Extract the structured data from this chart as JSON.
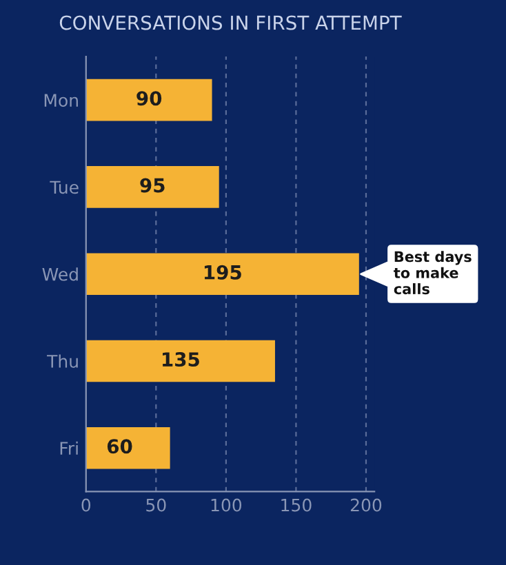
{
  "chart_data": {
    "type": "bar",
    "orientation": "horizontal",
    "title": "CONVERSATIONS IN FIRST ATTEMPT",
    "categories": [
      "Mon",
      "Tue",
      "Wed",
      "Thu",
      "Fri"
    ],
    "values": [
      90,
      95,
      195,
      135,
      60
    ],
    "color": "#f5b335",
    "xlim": [
      0,
      206
    ],
    "xticks": [
      0,
      50,
      100,
      150,
      200
    ],
    "grid": "x",
    "data_labels": true,
    "annotations": [
      {
        "text": "Best days\nto make\ncalls",
        "x": 195,
        "y": "Wed"
      }
    ]
  }
}
